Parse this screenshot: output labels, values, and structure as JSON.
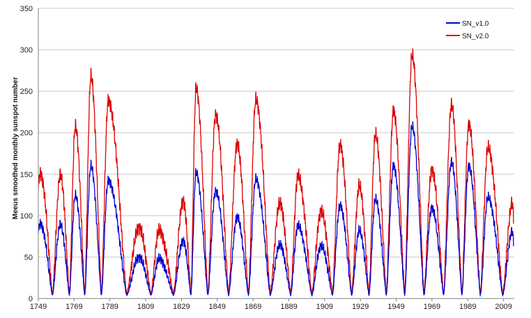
{
  "chart_data": {
    "type": "line",
    "ylabel": "Meeus smoothed monthly sunspot number",
    "xlabel": "",
    "title": "",
    "xlim": [
      1749,
      2015
    ],
    "ylim": [
      0,
      350
    ],
    "x_ticks": [
      "1749",
      "1769",
      "1789",
      "1809",
      "1829",
      "1849",
      "1869",
      "1889",
      "1909",
      "1929",
      "1949",
      "1969",
      "1989",
      "2009"
    ],
    "y_ticks": [
      "0",
      "50",
      "100",
      "150",
      "200",
      "250",
      "300",
      "350"
    ],
    "grid": "horizontal",
    "legend_position": "top-right",
    "cycle_peaks": [
      {
        "year": 1750.2,
        "v1": 90,
        "v2": 150
      },
      {
        "year": 1761.3,
        "v1": 90,
        "v2": 150
      },
      {
        "year": 1769.7,
        "v1": 125,
        "v2": 208
      },
      {
        "year": 1778.4,
        "v1": 160,
        "v2": 268
      },
      {
        "year": 1788.1,
        "v1": 142,
        "v2": 238
      },
      {
        "year": 1805.2,
        "v1": 50,
        "v2": 86
      },
      {
        "year": 1816.4,
        "v1": 48,
        "v2": 82
      },
      {
        "year": 1829.9,
        "v1": 70,
        "v2": 118
      },
      {
        "year": 1837.2,
        "v1": 152,
        "v2": 254
      },
      {
        "year": 1848.1,
        "v1": 130,
        "v2": 222
      },
      {
        "year": 1860.1,
        "v1": 98,
        "v2": 186
      },
      {
        "year": 1870.6,
        "v1": 144,
        "v2": 240
      },
      {
        "year": 1883.9,
        "v1": 65,
        "v2": 115
      },
      {
        "year": 1894.1,
        "v1": 88,
        "v2": 148
      },
      {
        "year": 1907.0,
        "v1": 64,
        "v2": 106
      },
      {
        "year": 1917.6,
        "v1": 112,
        "v2": 185
      },
      {
        "year": 1928.4,
        "v1": 82,
        "v2": 136
      },
      {
        "year": 1937.4,
        "v1": 120,
        "v2": 198
      },
      {
        "year": 1947.5,
        "v1": 160,
        "v2": 226
      },
      {
        "year": 1957.9,
        "v1": 208,
        "v2": 294
      },
      {
        "year": 1968.9,
        "v1": 110,
        "v2": 156
      },
      {
        "year": 1979.9,
        "v1": 165,
        "v2": 234
      },
      {
        "year": 1989.6,
        "v1": 160,
        "v2": 210
      },
      {
        "year": 2000.3,
        "v1": 122,
        "v2": 182
      },
      {
        "year": 2014.0,
        "v1": 82,
        "v2": 117
      }
    ],
    "series": [
      {
        "name": "SN_v1.0",
        "color": "#0000cc"
      },
      {
        "name": "SN_v2.0",
        "color": "#dd0000"
      }
    ]
  }
}
